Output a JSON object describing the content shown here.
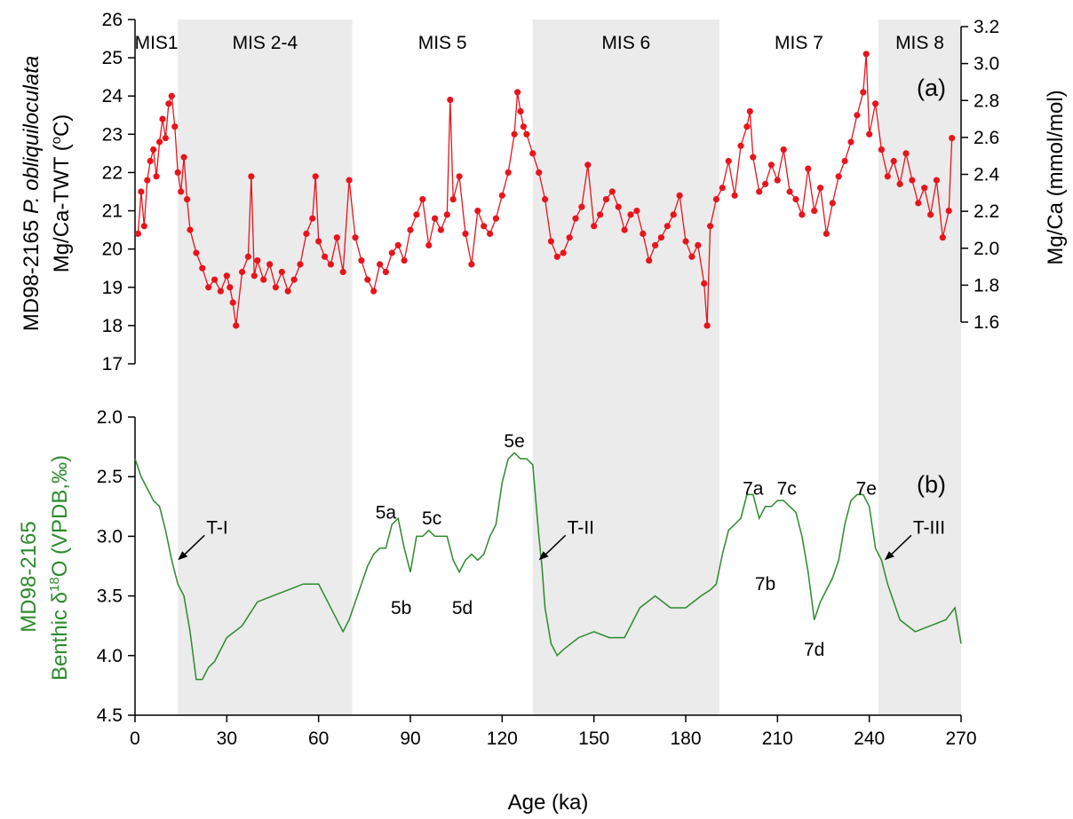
{
  "chart_data": [
    {
      "panel": "(a)",
      "type": "line",
      "marker": "circle",
      "color": "#e8141c",
      "ylabel_left_line1_pre": "MD98-2165 ",
      "ylabel_left_line1_italic": "P. obliquiloculata",
      "ylabel_left_line2_pre": "Mg/Ca-TWT (",
      "ylabel_left_line2_sup": "o",
      "ylabel_left_line2_post": "C)",
      "ylim_left": [
        17,
        26
      ],
      "yticks_left": [
        "17",
        "18",
        "19",
        "20",
        "21",
        "22",
        "23",
        "24",
        "25",
        "26"
      ],
      "ylabel_right": "Mg/Ca (mmol/mol)",
      "ylim_right": [
        1.6,
        3.2
      ],
      "yticks_right": [
        "1.6",
        "1.8",
        "2.0",
        "2.2",
        "2.4",
        "2.6",
        "2.8",
        "3.0",
        "3.2"
      ],
      "x": [
        1,
        2,
        3,
        4,
        5,
        6,
        7,
        8,
        9,
        10,
        11,
        12,
        13,
        14,
        15,
        16,
        17,
        18,
        20,
        22,
        24,
        26,
        28,
        30,
        31,
        32,
        33,
        35,
        37,
        38,
        39,
        40,
        42,
        44,
        46,
        48,
        50,
        52,
        54,
        56,
        58,
        59,
        60,
        62,
        64,
        66,
        68,
        70,
        72,
        74,
        76,
        78,
        80,
        82,
        84,
        86,
        88,
        90,
        92,
        94,
        96,
        98,
        100,
        102,
        103,
        104,
        106,
        108,
        110,
        112,
        114,
        116,
        118,
        120,
        122,
        124,
        125,
        126,
        127,
        128,
        130,
        132,
        134,
        136,
        138,
        140,
        142,
        144,
        146,
        148,
        150,
        152,
        154,
        156,
        158,
        160,
        162,
        164,
        166,
        168,
        170,
        172,
        174,
        176,
        178,
        180,
        182,
        184,
        186,
        187,
        188,
        190,
        192,
        194,
        196,
        198,
        200,
        201,
        202,
        204,
        206,
        208,
        210,
        212,
        214,
        216,
        218,
        220,
        222,
        224,
        226,
        228,
        230,
        232,
        234,
        236,
        238,
        239,
        240,
        242,
        244,
        246,
        248,
        250,
        252,
        254,
        256,
        258,
        260,
        262,
        264,
        266,
        267
      ],
      "y": [
        20.4,
        21.5,
        20.6,
        21.8,
        22.3,
        22.6,
        21.9,
        22.8,
        23.4,
        22.9,
        23.8,
        24.0,
        23.2,
        22.0,
        21.5,
        22.4,
        21.3,
        20.5,
        19.9,
        19.5,
        19.0,
        19.2,
        18.9,
        19.3,
        19.0,
        18.6,
        18.0,
        19.4,
        19.8,
        21.9,
        19.3,
        19.7,
        19.2,
        19.6,
        19.0,
        19.4,
        18.9,
        19.2,
        19.6,
        20.4,
        20.8,
        21.9,
        20.2,
        19.8,
        19.6,
        20.3,
        19.4,
        21.8,
        20.3,
        19.7,
        19.2,
        18.9,
        19.6,
        19.4,
        19.9,
        20.1,
        19.7,
        20.5,
        20.9,
        21.3,
        20.1,
        20.8,
        20.5,
        20.9,
        23.9,
        21.3,
        21.9,
        20.4,
        19.6,
        21.0,
        20.6,
        20.4,
        20.8,
        21.4,
        22.0,
        23.0,
        24.1,
        23.6,
        23.2,
        23.0,
        22.5,
        22.0,
        21.3,
        20.2,
        19.8,
        19.9,
        20.3,
        20.8,
        21.1,
        22.2,
        20.6,
        20.9,
        21.3,
        21.5,
        21.1,
        20.5,
        20.9,
        21.0,
        20.4,
        19.7,
        20.1,
        20.3,
        20.6,
        20.9,
        21.4,
        20.2,
        19.8,
        20.1,
        19.1,
        18.0,
        20.6,
        21.3,
        21.6,
        22.3,
        21.4,
        22.7,
        23.2,
        23.6,
        22.4,
        21.5,
        21.7,
        22.2,
        21.8,
        22.6,
        21.5,
        21.3,
        20.9,
        22.1,
        21.0,
        21.6,
        20.4,
        21.2,
        21.9,
        22.3,
        22.8,
        23.5,
        24.1,
        25.1,
        23.0,
        23.8,
        22.6,
        21.9,
        22.3,
        21.7,
        22.5,
        21.8,
        21.2,
        21.6,
        20.9,
        21.8,
        20.3,
        21.0,
        22.9
      ],
      "xlim": [
        0,
        270
      ]
    },
    {
      "panel": "(b)",
      "type": "line",
      "color": "#2d8a2d",
      "ylabel_line1": "MD98-2165",
      "ylabel_line2_pre": "Benthic δ",
      "ylabel_line2_sup": "18",
      "ylabel_line2_post": "O (VPDB,‰)",
      "ylim": [
        4.5,
        2.0
      ],
      "y_inverted": true,
      "yticks": [
        "2.0",
        "2.5",
        "3.0",
        "3.5",
        "4.0",
        "4.5"
      ],
      "xlabel": "Age (ka)",
      "xlim": [
        0,
        270
      ],
      "xticks": [
        "0",
        "30",
        "60",
        "90",
        "120",
        "150",
        "180",
        "210",
        "240",
        "270"
      ],
      "x": [
        0,
        2,
        4,
        6,
        8,
        10,
        12,
        14,
        16,
        18,
        20,
        22,
        24,
        26,
        28,
        30,
        35,
        40,
        45,
        50,
        55,
        60,
        62,
        65,
        68,
        70,
        72,
        74,
        76,
        78,
        80,
        82,
        84,
        86,
        88,
        90,
        92,
        94,
        96,
        98,
        100,
        102,
        104,
        106,
        108,
        110,
        112,
        114,
        116,
        118,
        120,
        122,
        124,
        126,
        128,
        130,
        132,
        133,
        134,
        136,
        138,
        140,
        145,
        150,
        155,
        160,
        165,
        170,
        175,
        180,
        185,
        188,
        190,
        192,
        194,
        196,
        198,
        200,
        202,
        204,
        206,
        208,
        210,
        212,
        214,
        216,
        218,
        220,
        222,
        224,
        226,
        228,
        230,
        232,
        234,
        236,
        238,
        240,
        242,
        244,
        246,
        248,
        250,
        255,
        260,
        265,
        268,
        270
      ],
      "y": [
        2.35,
        2.5,
        2.6,
        2.7,
        2.75,
        2.95,
        3.2,
        3.4,
        3.5,
        3.8,
        4.2,
        4.2,
        4.1,
        4.05,
        3.95,
        3.85,
        3.75,
        3.55,
        3.5,
        3.45,
        3.4,
        3.4,
        3.5,
        3.65,
        3.8,
        3.7,
        3.55,
        3.4,
        3.25,
        3.15,
        3.1,
        3.1,
        2.9,
        2.85,
        3.1,
        3.3,
        3.0,
        3.0,
        2.95,
        3.0,
        3.0,
        3.0,
        3.2,
        3.3,
        3.2,
        3.15,
        3.2,
        3.15,
        3.0,
        2.9,
        2.55,
        2.35,
        2.3,
        2.35,
        2.35,
        2.4,
        3.0,
        3.25,
        3.6,
        3.9,
        4.0,
        3.95,
        3.85,
        3.8,
        3.85,
        3.85,
        3.6,
        3.5,
        3.6,
        3.6,
        3.5,
        3.45,
        3.4,
        3.15,
        2.95,
        2.9,
        2.85,
        2.65,
        2.65,
        2.85,
        2.75,
        2.75,
        2.7,
        2.7,
        2.75,
        2.8,
        3.0,
        3.3,
        3.7,
        3.55,
        3.45,
        3.35,
        3.2,
        2.9,
        2.7,
        2.65,
        2.65,
        2.75,
        3.1,
        3.2,
        3.4,
        3.55,
        3.7,
        3.8,
        3.75,
        3.7,
        3.6,
        3.9
      ],
      "annotations": [
        {
          "label": "5e",
          "x": 124,
          "y": 2.2
        },
        {
          "label": "5a",
          "x": 82,
          "y": 2.8
        },
        {
          "label": "5c",
          "x": 97,
          "y": 2.85
        },
        {
          "label": "5b",
          "x": 87,
          "y": 3.6
        },
        {
          "label": "5d",
          "x": 107,
          "y": 3.6
        },
        {
          "label": "7a",
          "x": 202,
          "y": 2.6
        },
        {
          "label": "7c",
          "x": 213,
          "y": 2.6
        },
        {
          "label": "7e",
          "x": 239,
          "y": 2.6
        },
        {
          "label": "7b",
          "x": 206,
          "y": 3.4
        },
        {
          "label": "7d",
          "x": 222,
          "y": 3.95
        }
      ],
      "arrows": [
        {
          "label": "T-I",
          "x": 14,
          "y": 3.2
        },
        {
          "label": "T-II",
          "x": 132,
          "y": 3.2
        },
        {
          "label": "T-III",
          "x": 245,
          "y": 3.2
        }
      ]
    }
  ],
  "stages": [
    {
      "label": "MIS1",
      "from": 0,
      "to": 14,
      "shaded": false
    },
    {
      "label": "MIS 2-4",
      "from": 14,
      "to": 71,
      "shaded": true
    },
    {
      "label": "MIS 5",
      "from": 71,
      "to": 130,
      "shaded": false
    },
    {
      "label": "MIS 6",
      "from": 130,
      "to": 191,
      "shaded": true
    },
    {
      "label": "MIS 7",
      "from": 191,
      "to": 243,
      "shaded": false
    },
    {
      "label": "MIS 8",
      "from": 243,
      "to": 270,
      "shaded": true
    }
  ],
  "colors": {
    "shade": "#ebebeb",
    "red": "#e8141c",
    "green": "#2d8a2d",
    "green_text": "#2d8a2d"
  }
}
